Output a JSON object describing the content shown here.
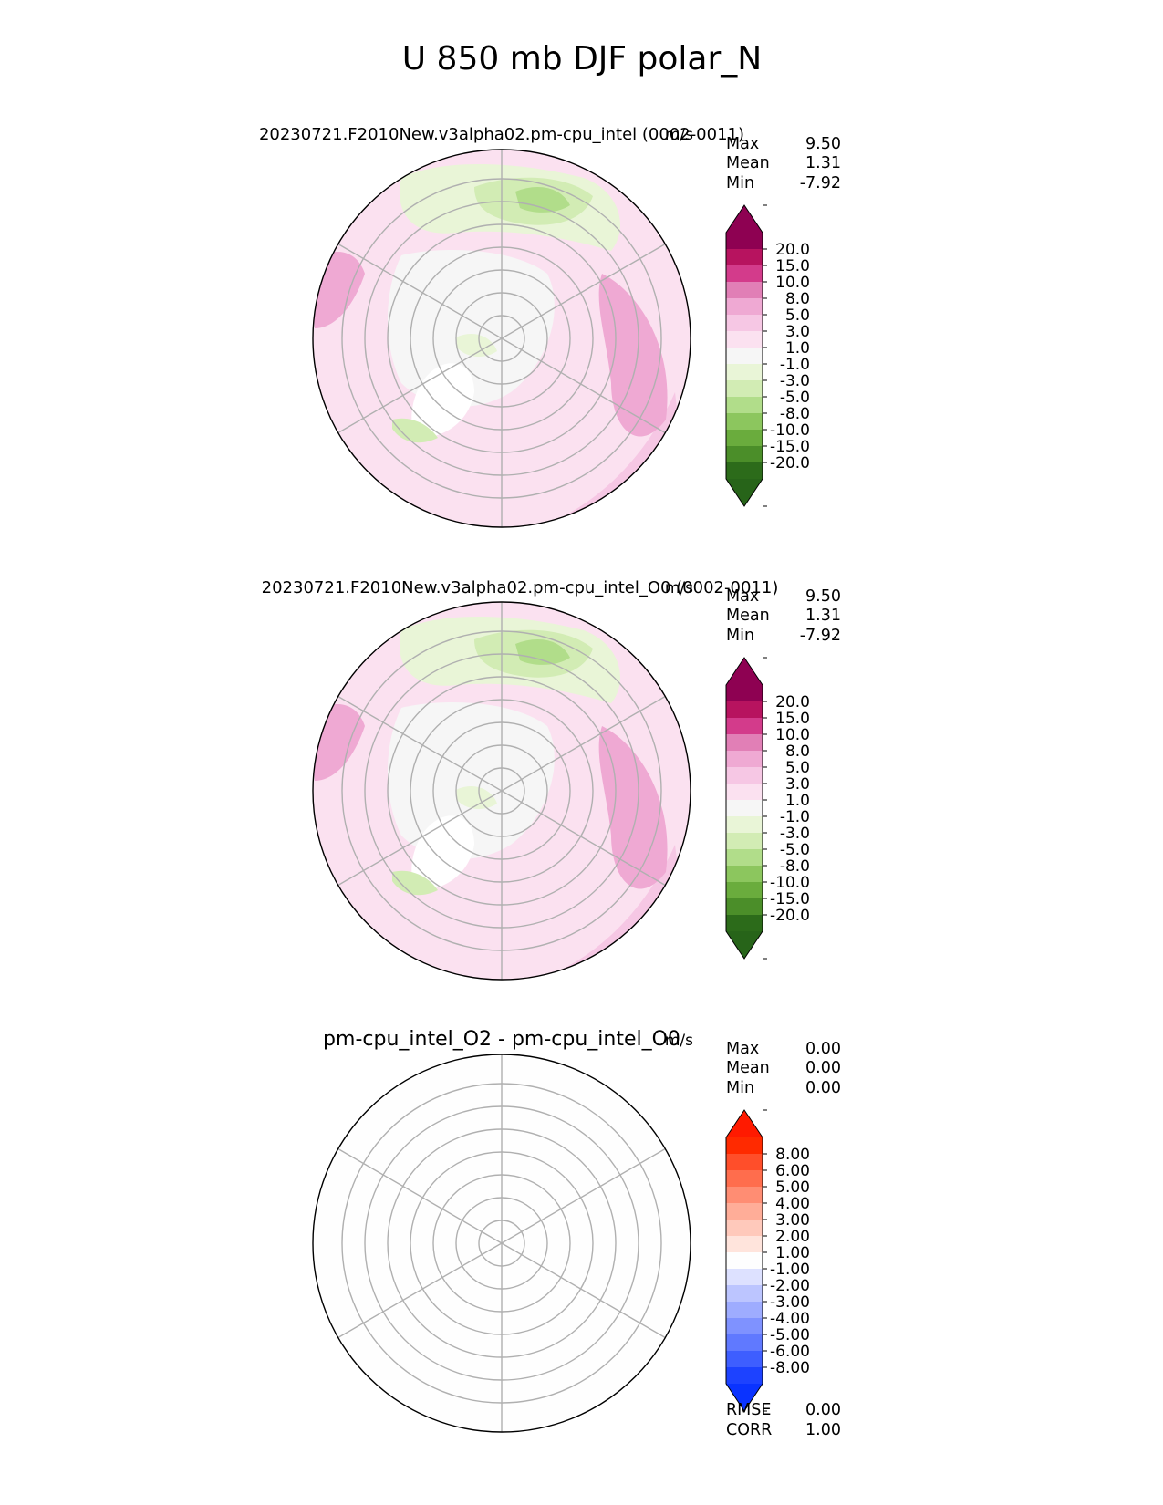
{
  "figure": {
    "title": "U 850 mb DJF polar_N"
  },
  "panels": [
    {
      "id": "test",
      "title": "20230721.F2010New.v3alpha02.pm-cpu_intel (0002-0011)",
      "units": "m/s",
      "stats": [
        {
          "label": "Max",
          "value": "9.50"
        },
        {
          "label": "Mean",
          "value": "1.31"
        },
        {
          "label": "Min",
          "value": "-7.92"
        }
      ],
      "colorbar": {
        "ticks": [
          "20.0",
          "15.0",
          "10.0",
          "8.0",
          "5.0",
          "3.0",
          "1.0",
          "-1.0",
          "-3.0",
          "-5.0",
          "-8.0",
          "-10.0",
          "-15.0",
          "-20.0"
        ],
        "colors": [
          "#8e0152",
          "#b7135f",
          "#d33b8b",
          "#e17fb6",
          "#efa9d3",
          "#f6c7e4",
          "#fbe1f0",
          "#f6f6f6",
          "#e9f5d7",
          "#d2ecb4",
          "#b1dd8a",
          "#8cc65e",
          "#6aac3d",
          "#4b8e29",
          "#2c6b1a"
        ],
        "extend_top": "#8e0152",
        "extend_bottom": "#276419"
      }
    },
    {
      "id": "reference",
      "title": "20230721.F2010New.v3alpha02.pm-cpu_intel_O0 (0002-0011)",
      "units": "m/s",
      "stats": [
        {
          "label": "Max",
          "value": "9.50"
        },
        {
          "label": "Mean",
          "value": "1.31"
        },
        {
          "label": "Min",
          "value": "-7.92"
        }
      ],
      "colorbar": {
        "ticks": [
          "20.0",
          "15.0",
          "10.0",
          "8.0",
          "5.0",
          "3.0",
          "1.0",
          "-1.0",
          "-3.0",
          "-5.0",
          "-8.0",
          "-10.0",
          "-15.0",
          "-20.0"
        ],
        "colors": [
          "#8e0152",
          "#b7135f",
          "#d33b8b",
          "#e17fb6",
          "#efa9d3",
          "#f6c7e4",
          "#fbe1f0",
          "#f6f6f6",
          "#e9f5d7",
          "#d2ecb4",
          "#b1dd8a",
          "#8cc65e",
          "#6aac3d",
          "#4b8e29",
          "#2c6b1a"
        ],
        "extend_top": "#8e0152",
        "extend_bottom": "#276419"
      }
    },
    {
      "id": "difference",
      "title": "pm-cpu_intel_O2 - pm-cpu_intel_O0",
      "units": "m/s",
      "stats": [
        {
          "label": "Max",
          "value": "0.00"
        },
        {
          "label": "Mean",
          "value": "0.00"
        },
        {
          "label": "Min",
          "value": "0.00"
        }
      ],
      "colorbar": {
        "ticks": [
          "8.00",
          "6.00",
          "5.00",
          "4.00",
          "3.00",
          "2.00",
          "1.00",
          "-1.00",
          "-2.00",
          "-3.00",
          "-4.00",
          "-5.00",
          "-6.00",
          "-8.00"
        ],
        "colors": [
          "#ff2a00",
          "#ff4e2a",
          "#ff6d4d",
          "#ff8d73",
          "#ffad98",
          "#ffc9bb",
          "#ffe4dc",
          "#fefefe",
          "#dde1ff",
          "#bcc5ff",
          "#9eacff",
          "#7f92ff",
          "#6079ff",
          "#3e5eff",
          "#1d42ff"
        ],
        "extend_top": "#ff1a00",
        "extend_bottom": "#0a33ff"
      },
      "metrics": [
        {
          "label": "RMSE",
          "value": "0.00"
        },
        {
          "label": "CORR",
          "value": "1.00"
        }
      ]
    }
  ],
  "chart_data": [
    {
      "type": "heatmap",
      "title": "20230721.F2010New.v3alpha02.pm-cpu_intel (0002-0011)",
      "variable": "U 850 mb",
      "season": "DJF",
      "region": "polar_N",
      "units": "m/s",
      "max": 9.5,
      "mean": 1.31,
      "min": -7.92,
      "levels": [
        -20,
        -15,
        -10,
        -8,
        -5,
        -3,
        -1,
        1,
        3,
        5,
        8,
        10,
        15,
        20
      ]
    },
    {
      "type": "heatmap",
      "title": "20230721.F2010New.v3alpha02.pm-cpu_intel_O0 (0002-0011)",
      "variable": "U 850 mb",
      "season": "DJF",
      "region": "polar_N",
      "units": "m/s",
      "max": 9.5,
      "mean": 1.31,
      "min": -7.92,
      "levels": [
        -20,
        -15,
        -10,
        -8,
        -5,
        -3,
        -1,
        1,
        3,
        5,
        8,
        10,
        15,
        20
      ]
    },
    {
      "type": "heatmap",
      "title": "pm-cpu_intel_O2 - pm-cpu_intel_O0",
      "units": "m/s",
      "max": 0.0,
      "mean": 0.0,
      "min": 0.0,
      "rmse": 0.0,
      "corr": 1.0,
      "levels": [
        -8,
        -6,
        -5,
        -4,
        -3,
        -2,
        -1,
        1,
        2,
        3,
        4,
        5,
        6,
        8
      ]
    }
  ]
}
